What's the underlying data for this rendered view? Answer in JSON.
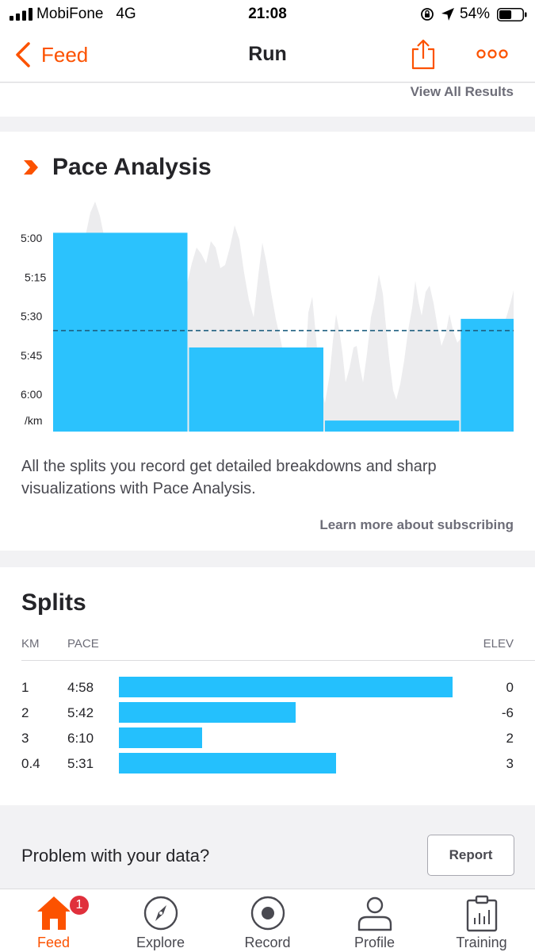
{
  "status_bar": {
    "carrier": "MobiFone",
    "network": "4G",
    "time": "21:08",
    "battery": "54%",
    "battery_level": 0.54
  },
  "nav": {
    "back_label": "Feed",
    "title": "Run"
  },
  "results": {
    "view_all_label": "View All Results"
  },
  "pace_analysis": {
    "title": "Pace Analysis",
    "description": "All the splits you record get detailed breakdowns and sharp visualizations with Pace Analysis.",
    "learn_more_label": "Learn more about subscribing"
  },
  "chart_data": {
    "type": "bar",
    "y_ticks": [
      "5:00",
      "5:15",
      "5:30",
      "5:45",
      "6:00"
    ],
    "y_unit": "/km",
    "y_tick_seconds": [
      300,
      315,
      330,
      345,
      360
    ],
    "ylim_seconds": [
      298,
      374
    ],
    "average_pace_seconds": 335.5,
    "categories": [
      "1",
      "2",
      "3",
      "0.4"
    ],
    "bars": [
      {
        "km": 1,
        "pace": "4:58",
        "pace_seconds": 298
      },
      {
        "km": 1,
        "pace": "5:42",
        "pace_seconds": 342
      },
      {
        "km": 1,
        "pace": "6:10",
        "pace_seconds": 370
      },
      {
        "km": 0.4,
        "pace": "5:31",
        "pace_seconds": 331
      }
    ],
    "colors": {
      "bar": "#24c0fd",
      "background_trace": "#ececee",
      "average_line": "#1e5f80"
    }
  },
  "splits": {
    "title": "Splits",
    "headers": {
      "km": "KM",
      "pace": "PACE",
      "elev": "ELEV"
    },
    "rows": [
      {
        "km": "1",
        "pace": "4:58",
        "elev": "0",
        "bar_fraction": 1.0
      },
      {
        "km": "2",
        "pace": "5:42",
        "elev": "-6",
        "bar_fraction": 0.53
      },
      {
        "km": "3",
        "pace": "6:10",
        "elev": "2",
        "bar_fraction": 0.25
      },
      {
        "km": "0.4",
        "pace": "5:31",
        "elev": "3",
        "bar_fraction": 0.65
      }
    ]
  },
  "problem": {
    "text": "Problem with your data?",
    "report_label": "Report"
  },
  "tabs": [
    {
      "label": "Feed",
      "icon": "home-icon",
      "active": true,
      "badge": "1"
    },
    {
      "label": "Explore",
      "icon": "compass-icon",
      "active": false
    },
    {
      "label": "Record",
      "icon": "record-icon",
      "active": false
    },
    {
      "label": "Profile",
      "icon": "profile-icon",
      "active": false
    },
    {
      "label": "Training",
      "icon": "training-icon",
      "active": false
    }
  ],
  "colors": {
    "brand": "#fc5200",
    "accent_bar": "#24c0fd",
    "badge": "#e0303c"
  }
}
